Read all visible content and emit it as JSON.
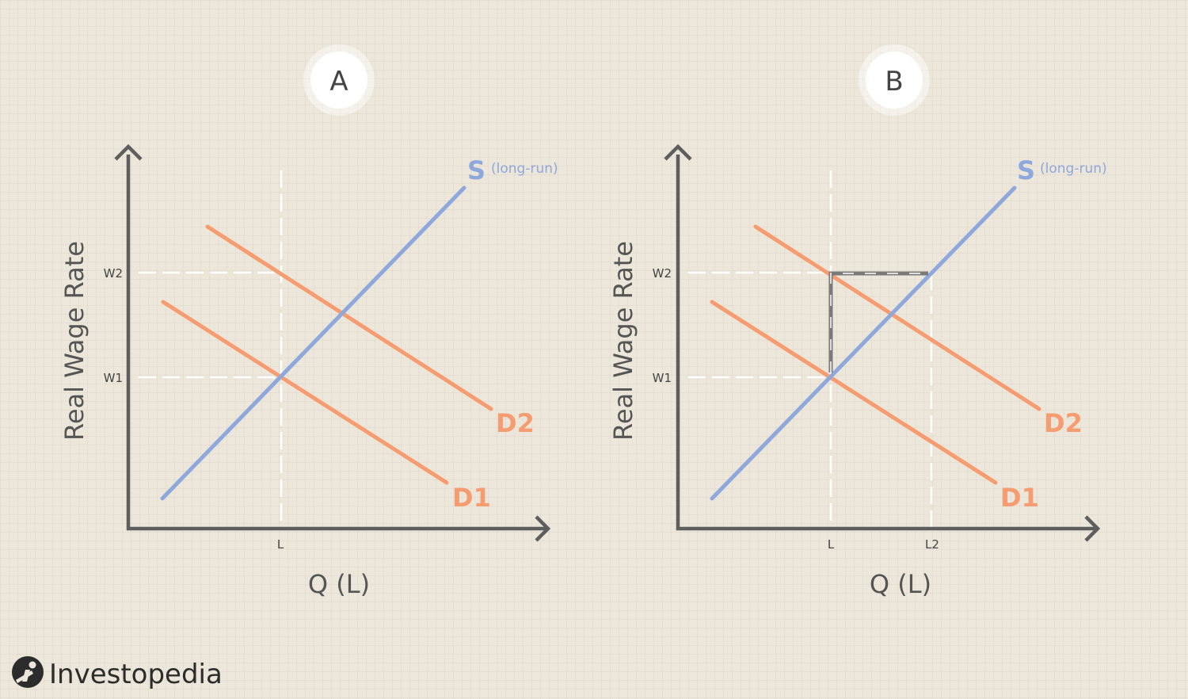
{
  "panels": [
    {
      "letter": "A",
      "y_axis_title": "Real Wage Rate",
      "x_axis_title": "Q (L)",
      "w1_label": "W1",
      "w2_label": "W2",
      "l_label": "L",
      "supply_label": "S",
      "supply_note": "(long-run)",
      "d1_label": "D1",
      "d2_label": "D2"
    },
    {
      "letter": "B",
      "y_axis_title": "Real Wage Rate",
      "x_axis_title": "Q (L)",
      "w1_label": "W1",
      "w2_label": "W2",
      "l_label": "L",
      "l2_label": "L2",
      "supply_label": "S",
      "supply_note": "(long-run)",
      "d1_label": "D1",
      "d2_label": "D2"
    }
  ],
  "logo": {
    "text": "Investopedia",
    "icon": "investopedia-logo-icon"
  },
  "colors": {
    "background": "#ede6da",
    "supply": "#8fa8dc",
    "demand": "#f59d70",
    "axis": "#5e5e5e",
    "guides": "#ffffff"
  }
}
